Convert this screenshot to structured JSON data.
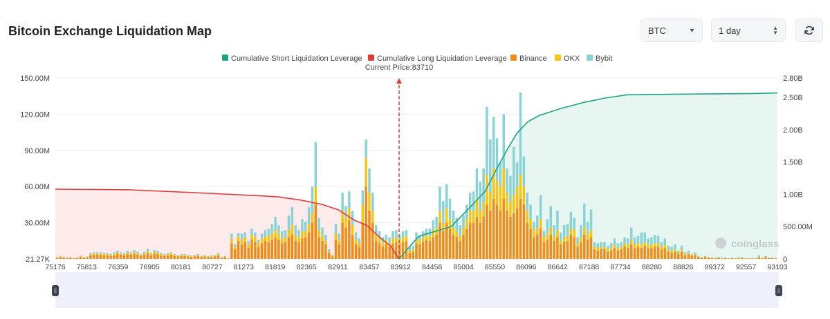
{
  "header": {
    "title": "Bitcoin Exchange Liquidation Map",
    "coin_select": "BTC",
    "range_select": "1 day"
  },
  "colors": {
    "short_cum": "#1aa683",
    "long_cum": "#e23a3a",
    "binance": "#f08c15",
    "okx": "#f6c413",
    "bybit": "#88d2d8",
    "current_price_line": "#e23a3a"
  },
  "chart_data": {
    "type": "bar",
    "title": "Bitcoin Exchange Liquidation Map",
    "current_price_label": "Current Price:83710",
    "current_price": 83710,
    "legend": [
      {
        "key": "short_cum",
        "label": "Cumulative Short Liquidation Leverage"
      },
      {
        "key": "long_cum",
        "label": "Cumulative Long Liquidation Leverage"
      },
      {
        "key": "binance",
        "label": "Binance"
      },
      {
        "key": "okx",
        "label": "OKX"
      },
      {
        "key": "bybit",
        "label": "Bybit"
      }
    ],
    "x_min": 75176,
    "x_max": 93103,
    "x_tick_labels": [
      "75176",
      "75813",
      "76359",
      "76905",
      "80181",
      "80727",
      "81273",
      "81819",
      "82365",
      "82911",
      "83457",
      "83912",
      "84458",
      "85004",
      "85550",
      "86096",
      "86642",
      "87188",
      "87734",
      "88280",
      "88826",
      "89372",
      "92557",
      "93103"
    ],
    "y_left_ticks": [
      "150.00M",
      "120.00M",
      "90.00M",
      "60.00M",
      "30.00M",
      "21.27K"
    ],
    "y_left_values": [
      150000000,
      120000000,
      90000000,
      60000000,
      30000000,
      21270
    ],
    "y_left_range": [
      21270,
      150000000
    ],
    "y_right_ticks": [
      "2.80B",
      "2.50B",
      "2.00B",
      "1.50B",
      "1.00B",
      "500.00M",
      "0"
    ],
    "y_right_values": [
      2800000000,
      2500000000,
      2000000000,
      1500000000,
      1000000000,
      500000000,
      0
    ],
    "y_right_range": [
      0,
      2800000000
    ],
    "bar_values_M": [
      [
        0.8,
        0.4,
        0.3
      ],
      [
        1.5,
        0.5,
        0.5
      ],
      [
        1.2,
        0.3,
        0.3
      ],
      [
        0.6,
        0.2,
        0.2
      ],
      [
        1.0,
        0.3,
        0.2
      ],
      [
        0.5,
        0.2,
        0.1
      ],
      [
        0.7,
        0.3,
        0.2
      ],
      [
        1.8,
        0.6,
        0.6
      ],
      [
        1.0,
        0.3,
        0.3
      ],
      [
        1.3,
        0.4,
        0.3
      ],
      [
        3.0,
        1.0,
        1.0
      ],
      [
        3.5,
        1.0,
        1.0
      ],
      [
        3.5,
        1.0,
        1.0
      ],
      [
        3.5,
        1.0,
        1.0
      ],
      [
        3.0,
        1.0,
        1.0
      ],
      [
        3.0,
        1.0,
        1.0
      ],
      [
        2.5,
        0.8,
        0.8
      ],
      [
        3.0,
        1.0,
        1.5
      ],
      [
        4.0,
        1.2,
        1.5
      ],
      [
        3.5,
        1.0,
        1.0
      ],
      [
        3.0,
        0.8,
        1.0
      ],
      [
        4.0,
        1.2,
        1.5
      ],
      [
        3.5,
        1.0,
        1.0
      ],
      [
        4.5,
        1.5,
        1.5
      ],
      [
        3.5,
        1.0,
        1.5
      ],
      [
        2.5,
        0.8,
        0.8
      ],
      [
        3.5,
        1.0,
        1.5
      ],
      [
        5.0,
        1.5,
        2.0
      ],
      [
        3.0,
        1.0,
        1.0
      ],
      [
        4.5,
        1.5,
        1.5
      ],
      [
        4.0,
        1.2,
        1.5
      ],
      [
        3.0,
        1.0,
        1.0
      ],
      [
        2.5,
        0.8,
        0.8
      ],
      [
        3.0,
        1.0,
        1.0
      ],
      [
        3.5,
        1.0,
        1.0
      ],
      [
        2.5,
        0.8,
        0.8
      ],
      [
        2.0,
        0.6,
        0.6
      ],
      [
        2.5,
        0.8,
        0.8
      ],
      [
        2.5,
        0.8,
        0.8
      ],
      [
        2.0,
        0.6,
        0.6
      ],
      [
        1.8,
        0.5,
        0.5
      ],
      [
        2.0,
        0.6,
        0.6
      ],
      [
        2.5,
        0.8,
        0.8
      ],
      [
        1.5,
        0.5,
        0.5
      ],
      [
        2.0,
        0.6,
        0.6
      ],
      [
        1.5,
        0.5,
        0.5
      ],
      [
        1.8,
        0.5,
        0.5
      ],
      [
        2.0,
        0.6,
        0.6
      ],
      [
        3.0,
        1.0,
        1.0
      ],
      [
        1.0,
        0.3,
        0.3
      ],
      [
        1.5,
        0.5,
        0.5
      ],
      [
        0.3,
        0.1,
        0.1
      ],
      [
        13.0,
        4.0,
        4.0
      ],
      [
        8.0,
        2.0,
        2.0
      ],
      [
        15.0,
        3.5,
        3.0
      ],
      [
        12.0,
        4.0,
        5.0
      ],
      [
        14.0,
        4.0,
        4.0
      ],
      [
        9.0,
        3.0,
        3.0
      ],
      [
        16.0,
        4.0,
        5.0
      ],
      [
        14.0,
        4.0,
        4.0
      ],
      [
        10.0,
        3.0,
        3.0
      ],
      [
        13.0,
        4.0,
        4.0
      ],
      [
        15.0,
        4.0,
        5.0
      ],
      [
        14.0,
        5.0,
        6.0
      ],
      [
        16.0,
        5.0,
        8.0
      ],
      [
        18.0,
        6.0,
        11.0
      ],
      [
        16.0,
        5.0,
        7.0
      ],
      [
        13.0,
        4.0,
        6.0
      ],
      [
        14.0,
        4.0,
        6.0
      ],
      [
        18.0,
        6.0,
        12.0
      ],
      [
        20.0,
        8.0,
        15.0
      ],
      [
        15.0,
        5.0,
        8.0
      ],
      [
        14.0,
        4.0,
        6.0
      ],
      [
        17.0,
        6.0,
        10.0
      ],
      [
        18.0,
        5.0,
        8.0
      ],
      [
        22.0,
        7.0,
        14.0
      ],
      [
        30.0,
        8.0,
        22.0
      ],
      [
        45.0,
        15.0,
        37.0
      ],
      [
        18.0,
        6.0,
        10.0
      ],
      [
        15.0,
        4.0,
        7.0
      ],
      [
        12.0,
        3.0,
        5.0
      ],
      [
        5.0,
        1.0,
        2.0
      ],
      [
        2.0,
        0.5,
        1.0
      ],
      [
        16.0,
        5.0,
        8.0
      ],
      [
        12.0,
        4.0,
        5.0
      ],
      [
        30.0,
        10.0,
        15.0
      ],
      [
        26.0,
        8.0,
        10.0
      ],
      [
        32.0,
        10.0,
        14.0
      ],
      [
        20.0,
        8.0,
        12.0
      ],
      [
        12.0,
        4.0,
        6.0
      ],
      [
        10.0,
        3.0,
        4.0
      ],
      [
        30.0,
        15.0,
        12.0
      ],
      [
        60.0,
        24.0,
        15.0
      ],
      [
        40.0,
        15.0,
        20.0
      ],
      [
        30.0,
        10.0,
        15.0
      ],
      [
        15.0,
        5.0,
        8.0
      ],
      [
        13.0,
        4.0,
        6.0
      ],
      [
        10.0,
        3.0,
        5.0
      ],
      [
        12.0,
        4.0,
        4.0
      ],
      [
        10.0,
        3.0,
        5.0
      ],
      [
        13.0,
        4.0,
        6.0
      ],
      [
        14.0,
        4.0,
        6.0
      ],
      [
        12.0,
        4.0,
        4.0
      ],
      [
        14.0,
        4.0,
        5.0
      ],
      [
        15.0,
        4.0,
        5.0
      ],
      [
        5.0,
        2.0,
        3.0
      ],
      [
        6.0,
        2.0,
        3.0
      ],
      [
        13.0,
        4.0,
        5.0
      ],
      [
        12.0,
        3.0,
        4.0
      ],
      [
        14.0,
        4.0,
        5.0
      ],
      [
        16.0,
        4.0,
        5.0
      ],
      [
        15.0,
        4.0,
        6.0
      ],
      [
        18.0,
        6.0,
        8.0
      ],
      [
        20.0,
        6.0,
        9.0
      ],
      [
        30.0,
        10.0,
        20.0
      ],
      [
        23.0,
        7.0,
        18.0
      ],
      [
        30.0,
        12.0,
        20.0
      ],
      [
        25.0,
        8.0,
        17.0
      ],
      [
        20.0,
        6.0,
        14.0
      ],
      [
        18.0,
        5.0,
        11.0
      ],
      [
        15.0,
        4.0,
        9.0
      ],
      [
        20.0,
        6.0,
        10.0
      ],
      [
        25.0,
        8.0,
        12.0
      ],
      [
        30.0,
        10.0,
        15.0
      ],
      [
        30.0,
        10.0,
        16.0
      ],
      [
        35.0,
        15.0,
        25.0
      ],
      [
        30.0,
        10.0,
        24.0
      ],
      [
        35.0,
        12.0,
        28.0
      ],
      [
        45.0,
        25.0,
        56.0
      ],
      [
        40.0,
        15.0,
        44.0
      ],
      [
        50.0,
        25.0,
        43.0
      ],
      [
        45.0,
        20.0,
        35.0
      ],
      [
        40.0,
        20.0,
        20.0
      ],
      [
        50.0,
        25.0,
        45.0
      ],
      [
        40.0,
        15.0,
        20.0
      ],
      [
        35.0,
        12.0,
        22.0
      ],
      [
        38.0,
        15.0,
        40.0
      ],
      [
        42.0,
        18.0,
        20.0
      ],
      [
        50.0,
        20.0,
        68.0
      ],
      [
        45.0,
        15.0,
        25.0
      ],
      [
        30.0,
        10.0,
        15.0
      ],
      [
        25.0,
        8.0,
        12.0
      ],
      [
        18.0,
        6.0,
        7.0
      ],
      [
        20.0,
        6.0,
        10.0
      ],
      [
        25.0,
        8.0,
        20.0
      ],
      [
        14.0,
        4.0,
        5.0
      ],
      [
        16.0,
        5.0,
        12.0
      ],
      [
        20.0,
        6.0,
        18.0
      ],
      [
        15.0,
        4.0,
        9.0
      ],
      [
        18.0,
        6.0,
        16.0
      ],
      [
        12.0,
        3.0,
        7.0
      ],
      [
        14.0,
        4.0,
        10.0
      ],
      [
        15.0,
        4.0,
        10.0
      ],
      [
        20.0,
        6.0,
        13.0
      ],
      [
        18.0,
        6.0,
        10.0
      ],
      [
        10.0,
        3.0,
        5.0
      ],
      [
        14.0,
        4.0,
        10.0
      ],
      [
        20.0,
        6.0,
        20.0
      ],
      [
        16.0,
        5.0,
        10.0
      ],
      [
        18.0,
        6.0,
        17.0
      ],
      [
        8.0,
        2.0,
        4.0
      ],
      [
        7.0,
        2.0,
        4.0
      ],
      [
        8.0,
        2.0,
        4.0
      ],
      [
        8.0,
        2.0,
        4.0
      ],
      [
        6.0,
        2.0,
        3.0
      ],
      [
        7.0,
        2.0,
        4.0
      ],
      [
        9.0,
        3.0,
        5.0
      ],
      [
        7.0,
        2.0,
        4.0
      ],
      [
        8.0,
        2.0,
        4.0
      ],
      [
        10.0,
        3.0,
        5.0
      ],
      [
        9.0,
        3.0,
        5.0
      ],
      [
        12.0,
        4.0,
        10.0
      ],
      [
        9.0,
        3.0,
        6.0
      ],
      [
        10.0,
        3.0,
        6.0
      ],
      [
        9.0,
        3.0,
        10.0
      ],
      [
        11.0,
        3.0,
        8.0
      ],
      [
        9.0,
        3.0,
        5.0
      ],
      [
        9.0,
        3.0,
        6.0
      ],
      [
        10.0,
        3.0,
        7.0
      ],
      [
        10.0,
        3.0,
        6.0
      ],
      [
        8.0,
        2.0,
        4.0
      ],
      [
        9.0,
        3.0,
        5.0
      ],
      [
        6.0,
        2.0,
        3.0
      ],
      [
        5.0,
        2.0,
        3.0
      ],
      [
        6.0,
        2.0,
        4.0
      ],
      [
        4.0,
        1.0,
        2.0
      ],
      [
        6.0,
        2.0,
        3.0
      ],
      [
        3.0,
        1.0,
        1.5
      ],
      [
        4.0,
        1.0,
        2.0
      ],
      [
        2.5,
        0.5,
        1.0
      ],
      [
        3.0,
        1.0,
        1.5
      ],
      [
        1.5,
        0.5,
        0.5
      ],
      [
        1.0,
        0.3,
        0.3
      ],
      [
        1.5,
        0.5,
        0.5
      ],
      [
        1.0,
        0.3,
        0.3
      ],
      [
        0.8,
        0.2,
        0.2
      ],
      [
        0.6,
        0.2,
        0.2
      ],
      [
        1.0,
        0.3,
        0.3
      ],
      [
        0.5,
        0.2,
        0.2
      ],
      [
        0.7,
        0.2,
        0.2
      ],
      [
        0.4,
        0.1,
        0.1
      ],
      [
        0.6,
        0.2,
        0.2
      ],
      [
        0.5,
        0.1,
        0.1
      ],
      [
        0.8,
        0.2,
        0.2
      ],
      [
        1.0,
        0.3,
        0.3
      ],
      [
        0.4,
        0.1,
        0.1
      ],
      [
        0.5,
        0.1,
        0.1
      ],
      [
        0.5,
        0.2,
        0.2
      ],
      [
        0.4,
        0.1,
        0.1
      ],
      [
        1.5,
        0.5,
        1.0
      ],
      [
        0.5,
        0.2,
        0.2
      ],
      [
        1.5,
        0.5,
        0.5
      ],
      [
        0.8,
        0.2,
        0.2
      ],
      [
        0.6,
        0.2,
        0.2
      ],
      [
        0.5,
        0.2,
        0.2
      ]
    ],
    "long_cumulative_B": [
      [
        75176,
        1.08
      ],
      [
        77000,
        1.07
      ],
      [
        78500,
        1.03
      ],
      [
        80181,
        0.98
      ],
      [
        80727,
        0.96
      ],
      [
        81273,
        0.91
      ],
      [
        81819,
        0.84
      ],
      [
        82200,
        0.76
      ],
      [
        82600,
        0.6
      ],
      [
        82911,
        0.52
      ],
      [
        83200,
        0.35
      ],
      [
        83500,
        0.2
      ],
      [
        83710,
        0.0
      ]
    ],
    "short_cumulative_B": [
      [
        83710,
        0.0
      ],
      [
        83912,
        0.15
      ],
      [
        84200,
        0.35
      ],
      [
        84458,
        0.4
      ],
      [
        85004,
        0.5
      ],
      [
        85550,
        0.85
      ],
      [
        85850,
        1.05
      ],
      [
        86096,
        1.35
      ],
      [
        86400,
        1.7
      ],
      [
        86642,
        1.95
      ],
      [
        86900,
        2.12
      ],
      [
        87188,
        2.22
      ],
      [
        87734,
        2.33
      ],
      [
        88280,
        2.42
      ],
      [
        88826,
        2.49
      ],
      [
        89372,
        2.54
      ],
      [
        90600,
        2.55
      ],
      [
        92557,
        2.56
      ],
      [
        93103,
        2.57
      ]
    ],
    "watermark": "coinglass"
  }
}
